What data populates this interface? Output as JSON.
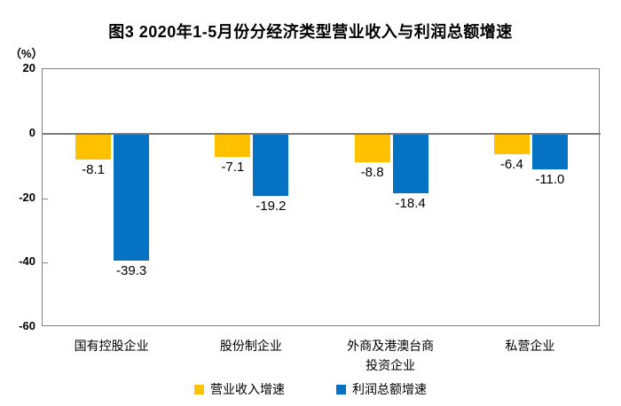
{
  "chart_data": {
    "type": "bar",
    "title": "图3  2020年1-5月份分经济类型营业收入与利润总额增速",
    "unit": "（%）",
    "categories": [
      "国有控股企业",
      "股份制企业",
      "外商及港澳台商\n投资企业",
      "私营企业"
    ],
    "series": [
      {
        "name": "营业收入增速",
        "color": "#FFC000",
        "values": [
          -8.1,
          -7.1,
          -8.8,
          -6.4
        ],
        "value_labels": [
          "-8.1",
          "-7.1",
          "-8.8",
          "-6.4"
        ]
      },
      {
        "name": "利润总额增速",
        "color": "#0572C4",
        "values": [
          -39.3,
          -19.2,
          -18.4,
          -11.0
        ],
        "value_labels": [
          "-39.3",
          "-19.2",
          "-18.4",
          "-11.0"
        ]
      }
    ],
    "ylim": [
      -60,
      20
    ],
    "yticks": [
      20,
      0,
      -20,
      -40,
      -60
    ],
    "grid": false,
    "legend_position": "bottom",
    "colors": {
      "axis": "#808080",
      "zero_line": "#7a7a7a",
      "text": "#000000"
    }
  }
}
